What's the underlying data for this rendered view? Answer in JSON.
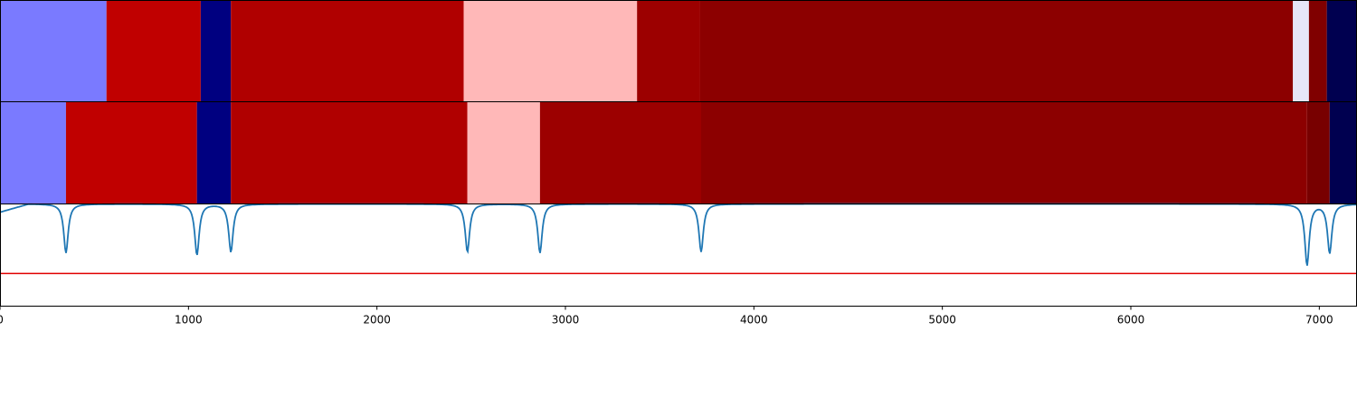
{
  "chart_data": {
    "type": "heatmap",
    "title": "",
    "xlabel": "",
    "ylabel": "",
    "xlim": [
      0,
      7200
    ],
    "x_ticks": [
      "0",
      "1000",
      "2000",
      "3000",
      "4000",
      "5000",
      "6000",
      "7000"
    ],
    "x_tick_values": [
      0,
      1000,
      2000,
      3000,
      4000,
      5000,
      6000,
      7000
    ],
    "grid": false,
    "segment_rows": [
      {
        "segments": [
          {
            "start": 0,
            "end": 565,
            "color": "#7a7aff"
          },
          {
            "start": 565,
            "end": 1065,
            "color": "#c00000"
          },
          {
            "start": 1065,
            "end": 1225,
            "color": "#000080"
          },
          {
            "start": 1225,
            "end": 2460,
            "color": "#b00000"
          },
          {
            "start": 2460,
            "end": 3380,
            "color": "#ffb8b8"
          },
          {
            "start": 3380,
            "end": 3715,
            "color": "#9c0000"
          },
          {
            "start": 3715,
            "end": 6860,
            "color": "#8c0000"
          },
          {
            "start": 6860,
            "end": 6945,
            "color": "#e6e6f8"
          },
          {
            "start": 6945,
            "end": 7040,
            "color": "#800000"
          },
          {
            "start": 7040,
            "end": 7200,
            "color": "#000050"
          }
        ]
      },
      {
        "segments": [
          {
            "start": 0,
            "end": 350,
            "color": "#7a7aff"
          },
          {
            "start": 350,
            "end": 1045,
            "color": "#c00000"
          },
          {
            "start": 1045,
            "end": 1225,
            "color": "#000080"
          },
          {
            "start": 1225,
            "end": 2480,
            "color": "#b00000"
          },
          {
            "start": 2480,
            "end": 2865,
            "color": "#ffb8b8"
          },
          {
            "start": 2865,
            "end": 3720,
            "color": "#9c0000"
          },
          {
            "start": 3720,
            "end": 6935,
            "color": "#8c0000"
          },
          {
            "start": 6935,
            "end": 7055,
            "color": "#780000"
          },
          {
            "start": 7055,
            "end": 7200,
            "color": "#000050"
          }
        ]
      }
    ],
    "line_panel": {
      "series_color": "#1f77b4",
      "threshold_color": "#e00000",
      "ylim": [
        0,
        1
      ],
      "threshold": 0.32,
      "baseline": 1.0,
      "dips": [
        {
          "x": 350,
          "min": 0.52
        },
        {
          "x": 1045,
          "min": 0.5
        },
        {
          "x": 1225,
          "min": 0.53
        },
        {
          "x": 2480,
          "min": 0.53
        },
        {
          "x": 2865,
          "min": 0.52
        },
        {
          "x": 3720,
          "min": 0.53
        },
        {
          "x": 6935,
          "min": 0.4
        },
        {
          "x": 7055,
          "min": 0.52
        }
      ]
    }
  }
}
